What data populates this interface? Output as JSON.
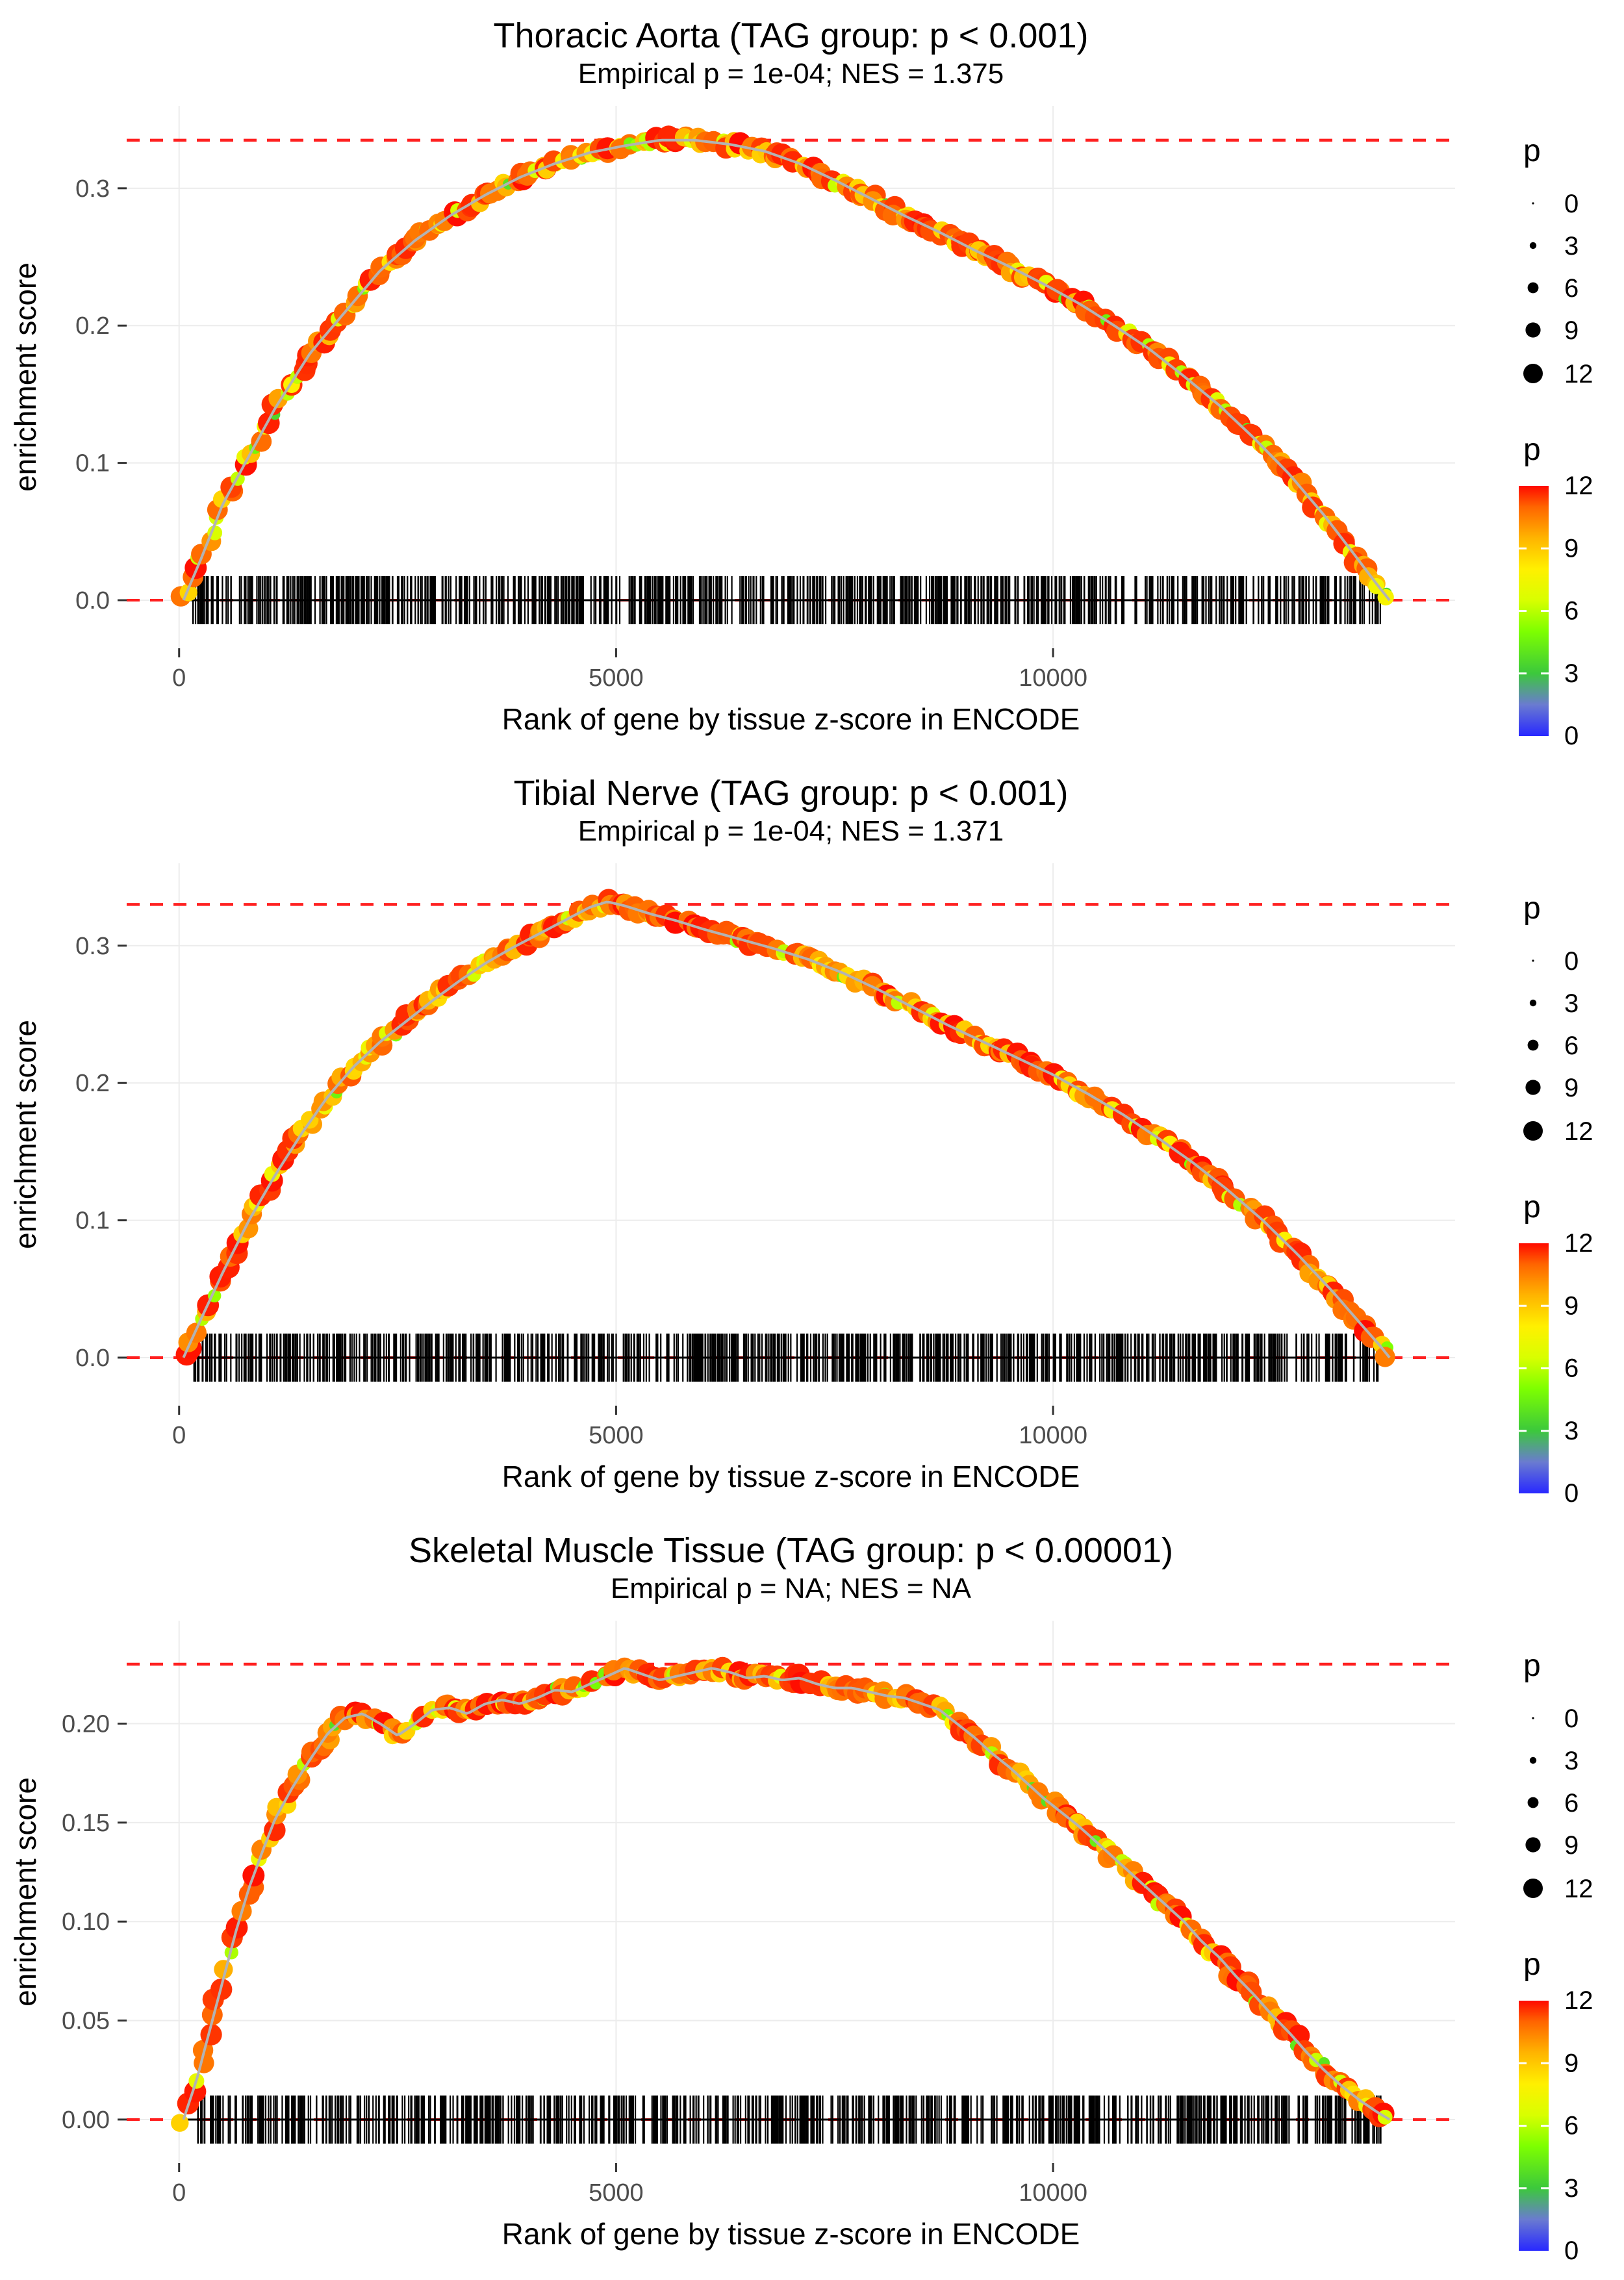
{
  "colors": {
    "dashed_line": "#FF2020",
    "zero_line": "#000000",
    "curve_line": "#B3B3B3",
    "rug": "#000000",
    "gridline": "#ECECEC",
    "tick_text": "#4D4D4D",
    "title_text": "#000000",
    "palette_stops": [
      {
        "v": 0,
        "c": "#2828FF"
      },
      {
        "v": 1.5,
        "c": "#6A7BD0"
      },
      {
        "v": 3,
        "c": "#3CC83C"
      },
      {
        "v": 5,
        "c": "#7DFF00"
      },
      {
        "v": 6.5,
        "c": "#D8FF00"
      },
      {
        "v": 8,
        "c": "#FFF000"
      },
      {
        "v": 9.5,
        "c": "#FFB400"
      },
      {
        "v": 11,
        "c": "#FF6400"
      },
      {
        "v": 12,
        "c": "#FF0A00"
      }
    ]
  },
  "legend": {
    "size": {
      "title": "p",
      "values": [
        0,
        3,
        6,
        9,
        12
      ],
      "labels": [
        "0",
        "3",
        "6",
        "9",
        "12"
      ]
    },
    "color": {
      "title": "p",
      "min": 0,
      "max": 12,
      "values": [
        12,
        9,
        6,
        3,
        0
      ],
      "labels": [
        "12",
        "9",
        "6",
        "3",
        "0"
      ]
    }
  },
  "chart_data": [
    {
      "type": "scatter",
      "title": "Thoracic Aorta (TAG group: p < 0.001)",
      "subtitle": "Empirical p = 1e-04; NES = 1.375",
      "xlabel": "Rank of gene by tissue z-score in ENCODE",
      "ylabel": "enrichment score",
      "xticks": [
        0,
        5000,
        10000
      ],
      "xtick_labels": [
        "0",
        "5000",
        "10000"
      ],
      "yticks": [
        0,
        0.1,
        0.2,
        0.3
      ],
      "ytick_labels": [
        "0.0",
        "0.1",
        "0.2",
        "0.3"
      ],
      "xlim": [
        -600,
        14600
      ],
      "ylim": [
        -0.035,
        0.36
      ],
      "peak_es": 0.335,
      "gene_rank_max": 13850,
      "seed": 11,
      "curve": [
        [
          50,
          0.0
        ],
        [
          250,
          0.03
        ],
        [
          500,
          0.07
        ],
        [
          800,
          0.105
        ],
        [
          1100,
          0.14
        ],
        [
          1500,
          0.18
        ],
        [
          1900,
          0.21
        ],
        [
          2300,
          0.24
        ],
        [
          2700,
          0.262
        ],
        [
          3100,
          0.28
        ],
        [
          3500,
          0.295
        ],
        [
          3900,
          0.308
        ],
        [
          4300,
          0.318
        ],
        [
          4700,
          0.326
        ],
        [
          5100,
          0.331
        ],
        [
          5500,
          0.335
        ],
        [
          5900,
          0.335
        ],
        [
          6300,
          0.332
        ],
        [
          6700,
          0.327
        ],
        [
          7100,
          0.318
        ],
        [
          7500,
          0.306
        ],
        [
          7900,
          0.293
        ],
        [
          8300,
          0.28
        ],
        [
          8700,
          0.268
        ],
        [
          9100,
          0.255
        ],
        [
          9500,
          0.243
        ],
        [
          9900,
          0.23
        ],
        [
          10300,
          0.216
        ],
        [
          10700,
          0.2
        ],
        [
          11100,
          0.183
        ],
        [
          11500,
          0.163
        ],
        [
          11900,
          0.142
        ],
        [
          12300,
          0.118
        ],
        [
          12700,
          0.092
        ],
        [
          13100,
          0.062
        ],
        [
          13450,
          0.033
        ],
        [
          13700,
          0.012
        ],
        [
          13850,
          0.0
        ]
      ]
    },
    {
      "type": "scatter",
      "title": "Tibial Nerve (TAG group: p < 0.001)",
      "subtitle": "Empirical p = 1e-04; NES = 1.371",
      "xlabel": "Rank of gene by tissue z-score in ENCODE",
      "ylabel": "enrichment score",
      "xticks": [
        0,
        5000,
        10000
      ],
      "xtick_labels": [
        "0",
        "5000",
        "10000"
      ],
      "yticks": [
        0,
        0.1,
        0.2,
        0.3
      ],
      "ytick_labels": [
        "0.0",
        "0.1",
        "0.2",
        "0.3"
      ],
      "xlim": [
        -600,
        14600
      ],
      "ylim": [
        -0.035,
        0.36
      ],
      "peak_es": 0.33,
      "gene_rank_max": 13850,
      "seed": 22,
      "curve": [
        [
          50,
          0.0
        ],
        [
          250,
          0.028
        ],
        [
          500,
          0.062
        ],
        [
          800,
          0.1
        ],
        [
          1100,
          0.133
        ],
        [
          1400,
          0.163
        ],
        [
          1700,
          0.19
        ],
        [
          2000,
          0.212
        ],
        [
          2300,
          0.23
        ],
        [
          2600,
          0.245
        ],
        [
          2900,
          0.26
        ],
        [
          3200,
          0.274
        ],
        [
          3500,
          0.287
        ],
        [
          3800,
          0.298
        ],
        [
          4100,
          0.308
        ],
        [
          4400,
          0.318
        ],
        [
          4700,
          0.328
        ],
        [
          4900,
          0.332
        ],
        [
          5100,
          0.329
        ],
        [
          5400,
          0.323
        ],
        [
          5700,
          0.318
        ],
        [
          6000,
          0.312
        ],
        [
          6400,
          0.305
        ],
        [
          6800,
          0.298
        ],
        [
          7200,
          0.29
        ],
        [
          7600,
          0.28
        ],
        [
          8000,
          0.268
        ],
        [
          8400,
          0.255
        ],
        [
          8800,
          0.242
        ],
        [
          9200,
          0.23
        ],
        [
          9600,
          0.218
        ],
        [
          10000,
          0.206
        ],
        [
          10400,
          0.192
        ],
        [
          10800,
          0.177
        ],
        [
          11200,
          0.16
        ],
        [
          11600,
          0.142
        ],
        [
          12000,
          0.122
        ],
        [
          12400,
          0.1
        ],
        [
          12800,
          0.075
        ],
        [
          13200,
          0.048
        ],
        [
          13500,
          0.026
        ],
        [
          13750,
          0.008
        ],
        [
          13850,
          0.0
        ]
      ]
    },
    {
      "type": "scatter",
      "title": "Skeletal Muscle Tissue (TAG group: p < 0.00001)",
      "subtitle": "Empirical p = NA; NES = NA",
      "xlabel": "Rank of gene by tissue z-score in ENCODE",
      "ylabel": "enrichment score",
      "xticks": [
        0,
        5000,
        10000
      ],
      "xtick_labels": [
        "0",
        "5000",
        "10000"
      ],
      "yticks": [
        0,
        0.05,
        0.1,
        0.15,
        0.2
      ],
      "ytick_labels": [
        "0.00",
        "0.05",
        "0.10",
        "0.15",
        "0.20"
      ],
      "xlim": [
        -600,
        14600
      ],
      "ylim": [
        -0.022,
        0.252
      ],
      "peak_es": 0.23,
      "gene_rank_max": 13850,
      "seed": 33,
      "curve": [
        [
          50,
          0.0
        ],
        [
          200,
          0.02
        ],
        [
          350,
          0.045
        ],
        [
          500,
          0.07
        ],
        [
          650,
          0.095
        ],
        [
          800,
          0.117
        ],
        [
          950,
          0.135
        ],
        [
          1100,
          0.152
        ],
        [
          1300,
          0.168
        ],
        [
          1500,
          0.182
        ],
        [
          1700,
          0.195
        ],
        [
          1900,
          0.203
        ],
        [
          2100,
          0.205
        ],
        [
          2300,
          0.2
        ],
        [
          2500,
          0.194
        ],
        [
          2700,
          0.2
        ],
        [
          2900,
          0.207
        ],
        [
          3100,
          0.208
        ],
        [
          3300,
          0.205
        ],
        [
          3500,
          0.21
        ],
        [
          3700,
          0.212
        ],
        [
          3900,
          0.21
        ],
        [
          4100,
          0.213
        ],
        [
          4300,
          0.217
        ],
        [
          4500,
          0.216
        ],
        [
          4700,
          0.22
        ],
        [
          4900,
          0.224
        ],
        [
          5100,
          0.228
        ],
        [
          5300,
          0.225
        ],
        [
          5500,
          0.222
        ],
        [
          5700,
          0.224
        ],
        [
          5900,
          0.226
        ],
        [
          6100,
          0.228
        ],
        [
          6300,
          0.226
        ],
        [
          6500,
          0.223
        ],
        [
          6700,
          0.224
        ],
        [
          6900,
          0.222
        ],
        [
          7100,
          0.223
        ],
        [
          7300,
          0.22
        ],
        [
          7500,
          0.218
        ],
        [
          7700,
          0.218
        ],
        [
          7900,
          0.216
        ],
        [
          8100,
          0.214
        ],
        [
          8300,
          0.213
        ],
        [
          8500,
          0.21
        ],
        [
          8700,
          0.207
        ],
        [
          8900,
          0.2
        ],
        [
          9100,
          0.193
        ],
        [
          9300,
          0.185
        ],
        [
          9500,
          0.178
        ],
        [
          9700,
          0.17
        ],
        [
          9900,
          0.162
        ],
        [
          10100,
          0.155
        ],
        [
          10300,
          0.148
        ],
        [
          10500,
          0.14
        ],
        [
          10700,
          0.132
        ],
        [
          10900,
          0.124
        ],
        [
          11100,
          0.116
        ],
        [
          11300,
          0.108
        ],
        [
          11500,
          0.1
        ],
        [
          11700,
          0.09
        ],
        [
          11900,
          0.082
        ],
        [
          12100,
          0.072
        ],
        [
          12300,
          0.063
        ],
        [
          12500,
          0.053
        ],
        [
          12700,
          0.044
        ],
        [
          12900,
          0.034
        ],
        [
          13100,
          0.025
        ],
        [
          13300,
          0.017
        ],
        [
          13500,
          0.01
        ],
        [
          13700,
          0.004
        ],
        [
          13850,
          0.0
        ]
      ]
    }
  ]
}
